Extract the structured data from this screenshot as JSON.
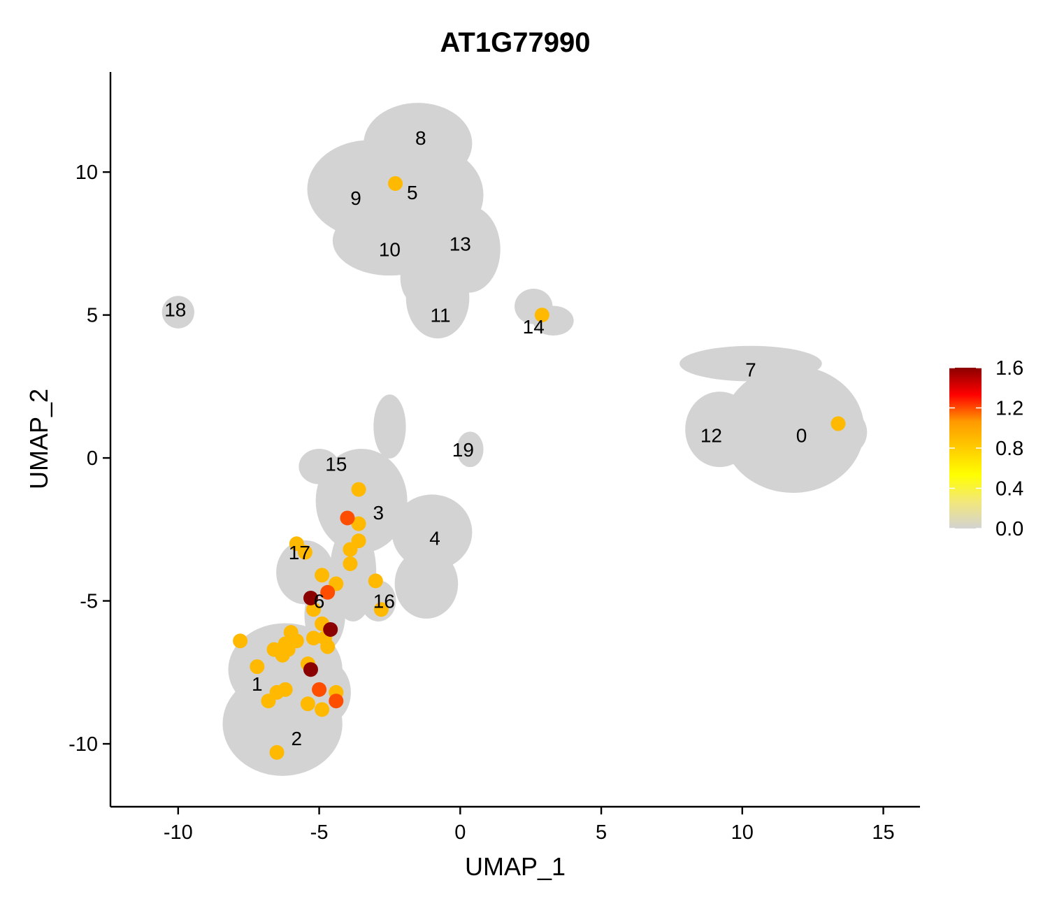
{
  "chart_data": {
    "type": "scatter",
    "title": "AT1G77990",
    "xlabel": "UMAP_1",
    "ylabel": "UMAP_2",
    "xlim": [
      -12.4,
      16.3
    ],
    "ylim": [
      -12.2,
      13.5
    ],
    "xticks": [
      -10,
      -5,
      0,
      5,
      10,
      15
    ],
    "yticks": [
      -10,
      -5,
      0,
      5,
      10
    ],
    "xtick_labels": [
      "-10",
      "-5",
      "0",
      "5",
      "10",
      "15"
    ],
    "ytick_labels": [
      "-10",
      "-5",
      "0",
      "5",
      "10"
    ],
    "grid": false,
    "legend": {
      "position": "right",
      "min": 0.0,
      "max": 1.6,
      "ticks": [
        0.0,
        0.4,
        0.8,
        1.2,
        1.6
      ],
      "tick_labels": [
        "0.0",
        "0.4",
        "0.8",
        "1.2",
        "1.6"
      ],
      "colors": [
        "#d3d3d3",
        "#f2e77a",
        "#ffff00",
        "#ffcc00",
        "#ff9900",
        "#ff0000",
        "#8b0000"
      ]
    },
    "background_clusters": [
      {
        "name": "upper",
        "color": "#d3d3d3",
        "blobs": [
          {
            "x": -1.5,
            "y": 11.0,
            "rx": 1.7,
            "ry": 1.2
          },
          {
            "x": -3.2,
            "y": 9.4,
            "rx": 2.0,
            "ry": 1.5
          },
          {
            "x": -1.2,
            "y": 9.2,
            "rx": 1.8,
            "ry": 1.5
          },
          {
            "x": -2.5,
            "y": 7.6,
            "rx": 1.8,
            "ry": 1.0
          },
          {
            "x": 0.3,
            "y": 7.3,
            "rx": 0.9,
            "ry": 1.3
          },
          {
            "x": -0.8,
            "y": 5.6,
            "rx": 0.9,
            "ry": 1.2
          },
          {
            "x": -1.5,
            "y": 6.3,
            "rx": 0.4,
            "ry": 0.7
          }
        ]
      },
      {
        "name": "cluster-18",
        "color": "#d3d3d3",
        "blobs": [
          {
            "x": -10.0,
            "y": 5.1,
            "rx": 0.35,
            "ry": 0.35
          }
        ]
      },
      {
        "name": "cluster-14",
        "color": "#d3d3d3",
        "blobs": [
          {
            "x": 2.6,
            "y": 5.3,
            "rx": 0.45,
            "ry": 0.4
          },
          {
            "x": 3.3,
            "y": 4.8,
            "rx": 0.5,
            "ry": 0.3
          }
        ]
      },
      {
        "name": "right",
        "color": "#d3d3d3",
        "blobs": [
          {
            "x": 11.8,
            "y": 1.0,
            "rx": 2.3,
            "ry": 2.0
          },
          {
            "x": 9.2,
            "y": 1.0,
            "rx": 1.0,
            "ry": 1.1
          },
          {
            "x": 10.3,
            "y": 3.3,
            "rx": 2.3,
            "ry": 0.4
          },
          {
            "x": 13.6,
            "y": 0.9,
            "rx": 0.6,
            "ry": 0.6
          }
        ]
      },
      {
        "name": "cluster-19",
        "color": "#d3d3d3",
        "blobs": [
          {
            "x": 0.35,
            "y": 0.3,
            "rx": 0.25,
            "ry": 0.4
          }
        ]
      },
      {
        "name": "lower",
        "color": "#d3d3d3",
        "blobs": [
          {
            "x": -2.5,
            "y": 1.1,
            "rx": 0.35,
            "ry": 0.9
          },
          {
            "x": -3.5,
            "y": -1.5,
            "rx": 1.4,
            "ry": 1.6
          },
          {
            "x": -1.0,
            "y": -2.6,
            "rx": 1.2,
            "ry": 1.1
          },
          {
            "x": -1.2,
            "y": -4.4,
            "rx": 0.9,
            "ry": 1.0
          },
          {
            "x": -5.0,
            "y": -0.3,
            "rx": 0.5,
            "ry": 0.4
          },
          {
            "x": -3.8,
            "y": -4.0,
            "rx": 0.6,
            "ry": 1.5
          },
          {
            "x": -5.5,
            "y": -4.0,
            "rx": 0.8,
            "ry": 0.9
          },
          {
            "x": -4.8,
            "y": -5.5,
            "rx": 0.5,
            "ry": 1.0
          },
          {
            "x": -2.9,
            "y": -5.0,
            "rx": 0.4,
            "ry": 0.5
          },
          {
            "x": -6.2,
            "y": -7.4,
            "rx": 1.8,
            "ry": 1.4
          },
          {
            "x": -6.3,
            "y": -9.3,
            "rx": 1.9,
            "ry": 1.6
          },
          {
            "x": -4.8,
            "y": -8.2,
            "rx": 0.7,
            "ry": 0.9
          }
        ]
      }
    ],
    "cluster_labels": [
      {
        "text": "0",
        "x": 12.1,
        "y": 0.8
      },
      {
        "text": "1",
        "x": -7.2,
        "y": -7.9
      },
      {
        "text": "2",
        "x": -5.8,
        "y": -9.8
      },
      {
        "text": "3",
        "x": -2.9,
        "y": -1.9
      },
      {
        "text": "4",
        "x": -0.9,
        "y": -2.8
      },
      {
        "text": "5",
        "x": -1.7,
        "y": 9.3
      },
      {
        "text": "6",
        "x": -5.0,
        "y": -5.0
      },
      {
        "text": "7",
        "x": 10.3,
        "y": 3.1
      },
      {
        "text": "8",
        "x": -1.4,
        "y": 11.2
      },
      {
        "text": "9",
        "x": -3.7,
        "y": 9.1
      },
      {
        "text": "10",
        "x": -2.5,
        "y": 7.3
      },
      {
        "text": "11",
        "x": -0.7,
        "y": 5.0
      },
      {
        "text": "12",
        "x": 8.9,
        "y": 0.8
      },
      {
        "text": "13",
        "x": 0.0,
        "y": 7.5
      },
      {
        "text": "14",
        "x": 2.6,
        "y": 4.6
      },
      {
        "text": "15",
        "x": -4.4,
        "y": -0.2
      },
      {
        "text": "16",
        "x": -2.7,
        "y": -5.0
      },
      {
        "text": "17",
        "x": -5.7,
        "y": -3.3
      },
      {
        "text": "18",
        "x": -10.1,
        "y": 5.2
      },
      {
        "text": "19",
        "x": 0.1,
        "y": 0.3
      }
    ],
    "expressing_cells": [
      {
        "x": -2.3,
        "y": 9.6,
        "value": 0.9
      },
      {
        "x": 2.9,
        "y": 5.0,
        "value": 0.9
      },
      {
        "x": 13.4,
        "y": 1.2,
        "value": 0.9
      },
      {
        "x": -3.6,
        "y": -1.1,
        "value": 0.9
      },
      {
        "x": -4.0,
        "y": -2.1,
        "value": 1.2
      },
      {
        "x": -3.6,
        "y": -2.3,
        "value": 0.9
      },
      {
        "x": -3.6,
        "y": -2.9,
        "value": 0.9
      },
      {
        "x": -3.9,
        "y": -3.2,
        "value": 0.9
      },
      {
        "x": -3.9,
        "y": -3.7,
        "value": 0.9
      },
      {
        "x": -5.8,
        "y": -3.0,
        "value": 0.9
      },
      {
        "x": -5.5,
        "y": -3.3,
        "value": 0.9
      },
      {
        "x": -3.0,
        "y": -4.3,
        "value": 0.9
      },
      {
        "x": -2.8,
        "y": -5.3,
        "value": 0.9
      },
      {
        "x": -4.9,
        "y": -4.1,
        "value": 0.9
      },
      {
        "x": -4.4,
        "y": -4.4,
        "value": 0.9
      },
      {
        "x": -5.3,
        "y": -4.9,
        "value": 1.6
      },
      {
        "x": -4.7,
        "y": -4.7,
        "value": 1.2
      },
      {
        "x": -5.2,
        "y": -5.3,
        "value": 0.9
      },
      {
        "x": -4.9,
        "y": -5.8,
        "value": 0.9
      },
      {
        "x": -4.6,
        "y": -6.0,
        "value": 1.6
      },
      {
        "x": -5.2,
        "y": -6.3,
        "value": 0.9
      },
      {
        "x": -4.8,
        "y": -6.3,
        "value": 0.9
      },
      {
        "x": -4.7,
        "y": -6.6,
        "value": 0.9
      },
      {
        "x": -7.8,
        "y": -6.4,
        "value": 0.9
      },
      {
        "x": -6.0,
        "y": -6.1,
        "value": 0.9
      },
      {
        "x": -5.8,
        "y": -6.4,
        "value": 0.9
      },
      {
        "x": -6.2,
        "y": -6.5,
        "value": 0.9
      },
      {
        "x": -6.6,
        "y": -6.7,
        "value": 0.9
      },
      {
        "x": -6.3,
        "y": -6.9,
        "value": 0.9
      },
      {
        "x": -6.1,
        "y": -6.7,
        "value": 0.9
      },
      {
        "x": -7.2,
        "y": -7.3,
        "value": 0.9
      },
      {
        "x": -5.4,
        "y": -7.2,
        "value": 0.9
      },
      {
        "x": -5.3,
        "y": -7.4,
        "value": 1.6
      },
      {
        "x": -6.2,
        "y": -8.1,
        "value": 0.9
      },
      {
        "x": -6.5,
        "y": -8.2,
        "value": 0.9
      },
      {
        "x": -6.8,
        "y": -8.5,
        "value": 0.9
      },
      {
        "x": -5.0,
        "y": -8.1,
        "value": 1.2
      },
      {
        "x": -4.4,
        "y": -8.2,
        "value": 0.9
      },
      {
        "x": -4.4,
        "y": -8.5,
        "value": 1.2
      },
      {
        "x": -5.4,
        "y": -8.6,
        "value": 0.9
      },
      {
        "x": -4.9,
        "y": -8.8,
        "value": 0.9
      },
      {
        "x": -6.5,
        "y": -10.3,
        "value": 0.9
      }
    ]
  }
}
